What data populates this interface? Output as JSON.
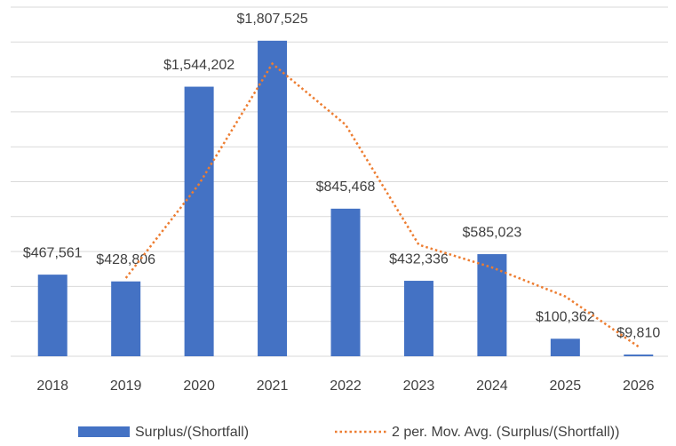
{
  "chart_data": {
    "type": "bar",
    "categories": [
      "2018",
      "2019",
      "2020",
      "2021",
      "2022",
      "2023",
      "2024",
      "2025",
      "2026"
    ],
    "series": [
      {
        "name": "Surplus/(Shortfall)",
        "type": "bar",
        "color": "#4472c4",
        "values": [
          467561,
          428806,
          1544202,
          1807525,
          845468,
          432336,
          585023,
          100362,
          9810
        ],
        "value_labels": [
          "$467,561",
          "$428,806",
          "$1,544,202",
          "$1,807,525",
          "$845,468",
          "$432,336",
          "$585,023",
          "$100,362",
          "$9,810"
        ]
      },
      {
        "name": "2 per. Mov. Avg. (Surplus/(Shortfall))",
        "type": "line",
        "color": "#ed7d31",
        "dashed": true,
        "values": [
          null,
          448183.5,
          986504,
          1675863.5,
          1326496.5,
          638902,
          508679.5,
          342692.5,
          55086
        ]
      }
    ],
    "ylim": [
      0,
      2000000
    ],
    "yticks": [
      0,
      200000,
      400000,
      600000,
      800000,
      1000000,
      1200000,
      1400000,
      1600000,
      1800000,
      2000000
    ],
    "grid": true
  }
}
